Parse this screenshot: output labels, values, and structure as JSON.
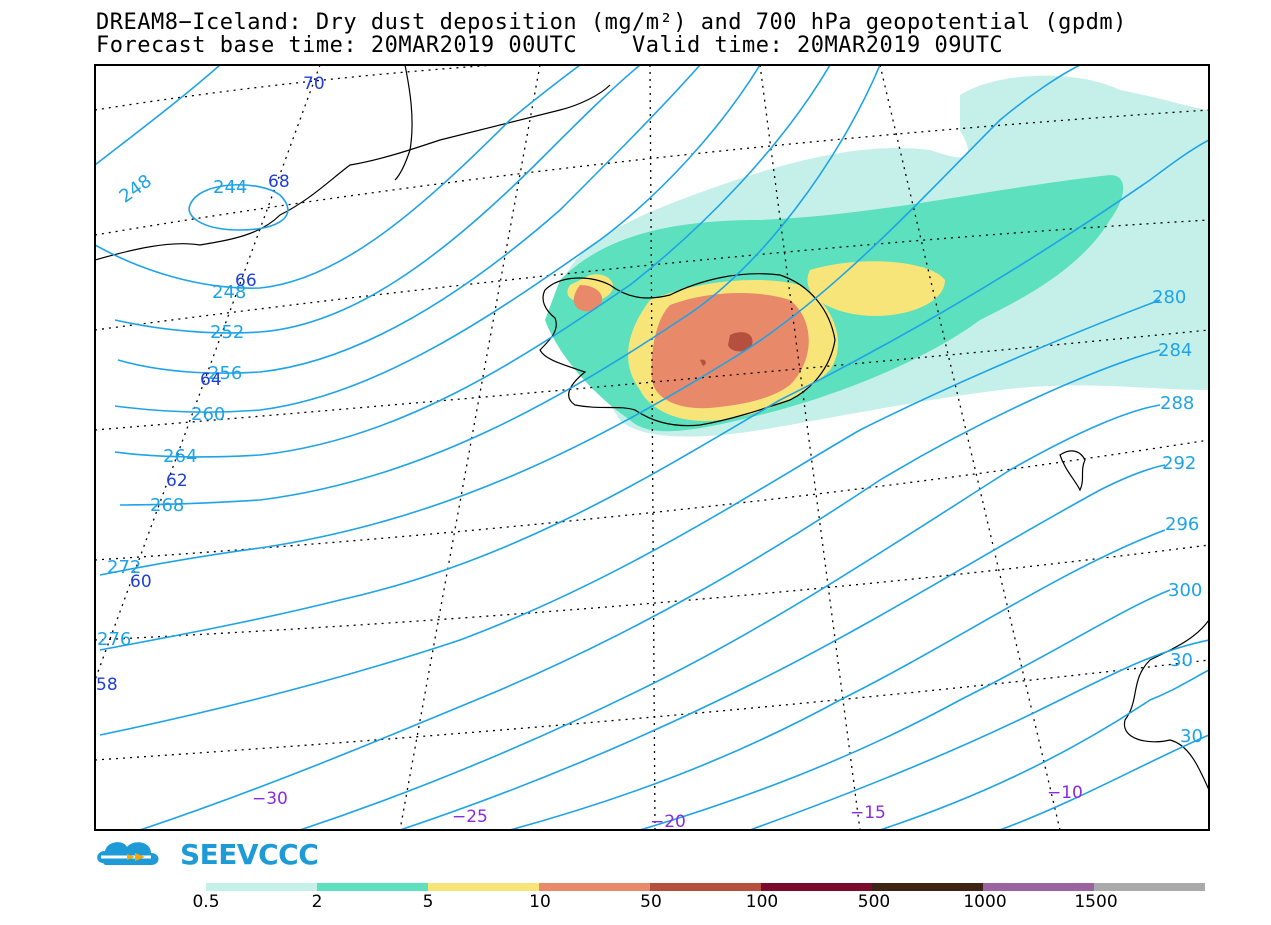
{
  "header": {
    "title_line1": "DREAM8−Iceland: Dry dust deposition (mg/m²) and 700 hPa geopotential (gpdm)",
    "title_line2": "Forecast base time: 20MAR2019 00UTC    Valid time: 20MAR2019 09UTC"
  },
  "logo": {
    "text": "SEEVCCC",
    "icon": "cloud-arrow-icon"
  },
  "legend": {
    "colors": [
      "#c5f0ea",
      "#5ce0bd",
      "#f7e57a",
      "#e8896a",
      "#b5503f",
      "#7a0a2e",
      "#3f2416",
      "#9a64a0",
      "#aaaaaa"
    ],
    "labels": [
      "0.5",
      "2",
      "5",
      "10",
      "50",
      "100",
      "500",
      "1000",
      "1500"
    ]
  },
  "map": {
    "contour_color": "#1ea3e6",
    "geopotential_labels": [
      "248",
      "244",
      "248",
      "252",
      "256",
      "260",
      "264",
      "268",
      "272",
      "276",
      "280",
      "284",
      "288",
      "292",
      "296",
      "300",
      "30",
      "30"
    ],
    "latitude_labels": [
      "70",
      "68",
      "66",
      "64",
      "62",
      "60",
      "58"
    ],
    "longitude_labels": [
      "−30",
      "−25",
      "−20",
      "−15",
      "−10"
    ]
  }
}
